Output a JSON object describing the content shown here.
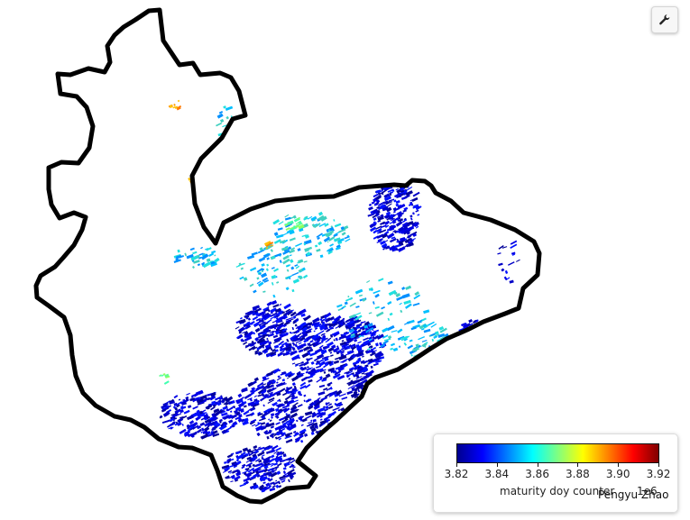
{
  "map": {
    "region_outline_color": "#000000",
    "land_fill": "#ffffff"
  },
  "toolbar": {
    "tool_icon": "wrench-icon"
  },
  "legend": {
    "title": "maturity doy counter",
    "scale": "1e6",
    "ticks": [
      "3.82",
      "3.84",
      "3.86",
      "3.88",
      "3.90",
      "3.92"
    ],
    "range": [
      3.82,
      3.92
    ],
    "colormap": [
      "#00008f",
      "#0000ff",
      "#0080ff",
      "#00ffff",
      "#80ff80",
      "#ffff00",
      "#ff8000",
      "#ff0000",
      "#800000"
    ]
  },
  "attribution": "Pengyu Zhao"
}
